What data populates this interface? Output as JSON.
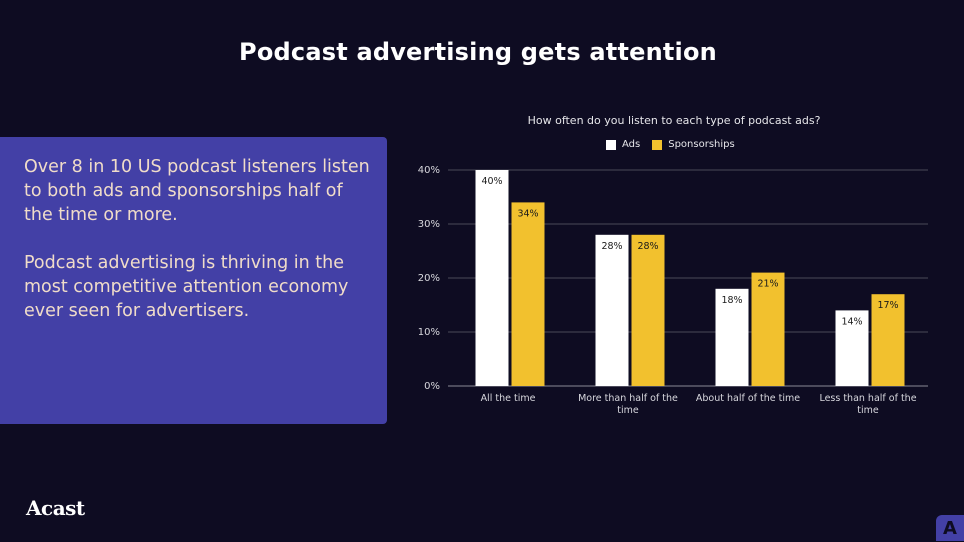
{
  "slide": {
    "title": "Podcast advertising gets attention",
    "paragraph_1": "Over 8 in 10 US podcast listeners listen to both ads and sponsorships half of the time or more.",
    "paragraph_2": "Podcast advertising is thriving in the most competitive attention economy ever seen for advertisers.",
    "logo_text": "Acast",
    "corner_glyph": "A"
  },
  "colors": {
    "background": "#0e0c22",
    "panel": "#4340a6",
    "ads": "#ffffff",
    "sponsorships": "#f2c12e"
  },
  "chart_data": {
    "type": "bar",
    "title": "How often do you listen to each type of podcast ads?",
    "categories": [
      [
        "All the time"
      ],
      [
        "More than half of the",
        "time"
      ],
      [
        "About half of the time"
      ],
      [
        "Less than half of the",
        "time"
      ]
    ],
    "series": [
      {
        "name": "Ads",
        "values": [
          40,
          28,
          18,
          14
        ],
        "labels": [
          "40%",
          "28%",
          "18%",
          "14%"
        ]
      },
      {
        "name": "Sponsorships",
        "values": [
          34,
          28,
          21,
          17
        ],
        "labels": [
          "34%",
          "28%",
          "21%",
          "17%"
        ]
      }
    ],
    "ylim": [
      0,
      40
    ],
    "yticks": [
      0,
      10,
      20,
      30,
      40
    ],
    "ytick_labels": [
      "0%",
      "10%",
      "20%",
      "30%",
      "40%"
    ],
    "grid": true,
    "legend_position": "top-center"
  }
}
